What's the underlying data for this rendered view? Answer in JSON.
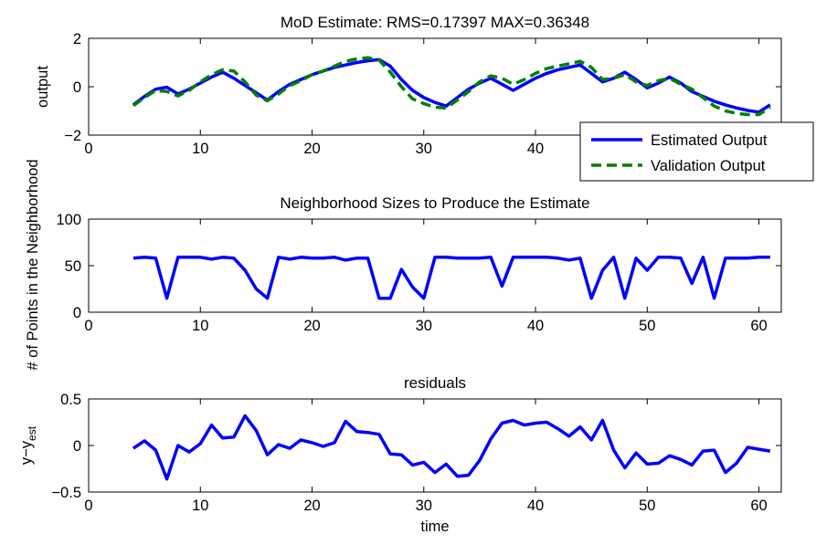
{
  "chart_data": [
    {
      "type": "line",
      "title": "MoD Estimate: RMS=0.17397 MAX=0.36348",
      "xlabel": "",
      "ylabel": "output",
      "xlim": [
        0,
        62
      ],
      "ylim": [
        -2,
        2
      ],
      "xticks": [
        "0",
        "10",
        "20",
        "30",
        "40",
        "50",
        "60"
      ],
      "yticks": [
        "2",
        "0",
        "−2"
      ],
      "legend_position": "bottom-right",
      "x": [
        4,
        5,
        6,
        7,
        8,
        9,
        10,
        11,
        12,
        13,
        14,
        15,
        16,
        17,
        18,
        19,
        20,
        21,
        22,
        23,
        24,
        25,
        26,
        27,
        28,
        29,
        30,
        31,
        32,
        33,
        34,
        35,
        36,
        37,
        38,
        39,
        40,
        41,
        42,
        43,
        44,
        45,
        46,
        47,
        48,
        49,
        50,
        51,
        52,
        53,
        54,
        55,
        56,
        57,
        58,
        59,
        60,
        61
      ],
      "series": [
        {
          "name": "Estimated Output",
          "color": "#0000ff",
          "style": "solid",
          "values": [
            -0.75,
            -0.4,
            -0.1,
            -0.02,
            -0.3,
            -0.1,
            0.15,
            0.4,
            0.6,
            0.35,
            0.05,
            -0.25,
            -0.55,
            -0.2,
            0.1,
            0.3,
            0.5,
            0.65,
            0.8,
            0.9,
            1.0,
            1.07,
            1.12,
            0.85,
            0.3,
            -0.15,
            -0.45,
            -0.65,
            -0.8,
            -0.45,
            -0.1,
            0.15,
            0.35,
            0.1,
            -0.15,
            0.1,
            0.35,
            0.55,
            0.7,
            0.8,
            0.9,
            0.55,
            0.2,
            0.35,
            0.6,
            0.3,
            -0.05,
            0.15,
            0.4,
            0.15,
            -0.2,
            -0.4,
            -0.6,
            -0.75,
            -0.88,
            -0.98,
            -1.05,
            -0.75
          ]
        },
        {
          "name": "Validation Output",
          "color": "#008000",
          "style": "dashed",
          "values": [
            -0.78,
            -0.45,
            -0.15,
            -0.2,
            -0.38,
            -0.15,
            0.2,
            0.5,
            0.7,
            0.65,
            0.2,
            -0.35,
            -0.58,
            -0.3,
            0.05,
            0.25,
            0.5,
            0.65,
            0.85,
            1.05,
            1.15,
            1.2,
            1.1,
            0.6,
            0.0,
            -0.5,
            -0.7,
            -0.85,
            -0.88,
            -0.55,
            -0.2,
            0.2,
            0.45,
            0.35,
            0.1,
            0.3,
            0.55,
            0.75,
            0.85,
            0.95,
            1.05,
            0.8,
            0.3,
            0.35,
            0.5,
            0.2,
            0.05,
            0.25,
            0.35,
            0.1,
            -0.1,
            -0.45,
            -0.8,
            -1.0,
            -1.1,
            -1.15,
            -1.15,
            -0.85
          ]
        }
      ]
    },
    {
      "type": "line",
      "title": "Neighborhood Sizes to Produce the Estimate",
      "xlabel": "",
      "ylabel": "# of Points in the Neighborhood",
      "xlim": [
        0,
        62
      ],
      "ylim": [
        0,
        100
      ],
      "xticks": [
        "0",
        "10",
        "20",
        "30",
        "40",
        "50",
        "60"
      ],
      "yticks": [
        "100",
        "50",
        "0"
      ],
      "x": [
        4,
        5,
        6,
        7,
        8,
        9,
        10,
        11,
        12,
        13,
        14,
        15,
        16,
        17,
        18,
        19,
        20,
        21,
        22,
        23,
        24,
        25,
        26,
        27,
        28,
        29,
        30,
        31,
        32,
        33,
        34,
        35,
        36,
        37,
        38,
        39,
        40,
        41,
        42,
        43,
        44,
        45,
        46,
        47,
        48,
        49,
        50,
        51,
        52,
        53,
        54,
        55,
        56,
        57,
        58,
        59,
        60,
        61
      ],
      "series": [
        {
          "color": "#0000ff",
          "style": "solid",
          "values": [
            58,
            59,
            58,
            15,
            59,
            59,
            59,
            57,
            59,
            58,
            45,
            25,
            15,
            59,
            57,
            59,
            58,
            58,
            59,
            56,
            58,
            58,
            15,
            15,
            46,
            27,
            15,
            59,
            59,
            58,
            58,
            58,
            59,
            28,
            59,
            59,
            59,
            59,
            58,
            56,
            58,
            15,
            45,
            59,
            15,
            58,
            45,
            59,
            59,
            58,
            31,
            59,
            15,
            58,
            58,
            58,
            59,
            59
          ]
        }
      ]
    },
    {
      "type": "line",
      "title": "residuals",
      "xlabel": "time",
      "ylabel": "y−y",
      "ylabel_subscript": "est",
      "xlim": [
        0,
        62
      ],
      "ylim": [
        -0.5,
        0.5
      ],
      "xticks": [
        "0",
        "10",
        "20",
        "30",
        "40",
        "50",
        "60"
      ],
      "yticks": [
        "0.5",
        "0",
        "−0.5"
      ],
      "x": [
        4,
        5,
        6,
        7,
        8,
        9,
        10,
        11,
        12,
        13,
        14,
        15,
        16,
        17,
        18,
        19,
        20,
        21,
        22,
        23,
        24,
        25,
        26,
        27,
        28,
        29,
        30,
        31,
        32,
        33,
        34,
        35,
        36,
        37,
        38,
        39,
        40,
        41,
        42,
        43,
        44,
        45,
        46,
        47,
        48,
        49,
        50,
        51,
        52,
        53,
        54,
        55,
        56,
        57,
        58,
        59,
        60,
        61
      ],
      "series": [
        {
          "color": "#0000ff",
          "style": "solid",
          "values": [
            -0.03,
            0.05,
            -0.05,
            -0.36,
            0.0,
            -0.07,
            0.02,
            0.22,
            0.08,
            0.09,
            0.32,
            0.16,
            -0.1,
            0.01,
            -0.03,
            0.06,
            0.03,
            -0.01,
            0.03,
            0.26,
            0.15,
            0.14,
            0.12,
            -0.09,
            -0.1,
            -0.21,
            -0.18,
            -0.29,
            -0.2,
            -0.33,
            -0.32,
            -0.16,
            0.07,
            0.24,
            0.27,
            0.22,
            0.24,
            0.25,
            0.18,
            0.1,
            0.2,
            0.06,
            0.27,
            -0.05,
            -0.24,
            -0.08,
            -0.2,
            -0.19,
            -0.11,
            -0.15,
            -0.21,
            -0.06,
            -0.05,
            -0.29,
            -0.19,
            -0.02,
            -0.04,
            -0.06
          ]
        }
      ]
    }
  ]
}
